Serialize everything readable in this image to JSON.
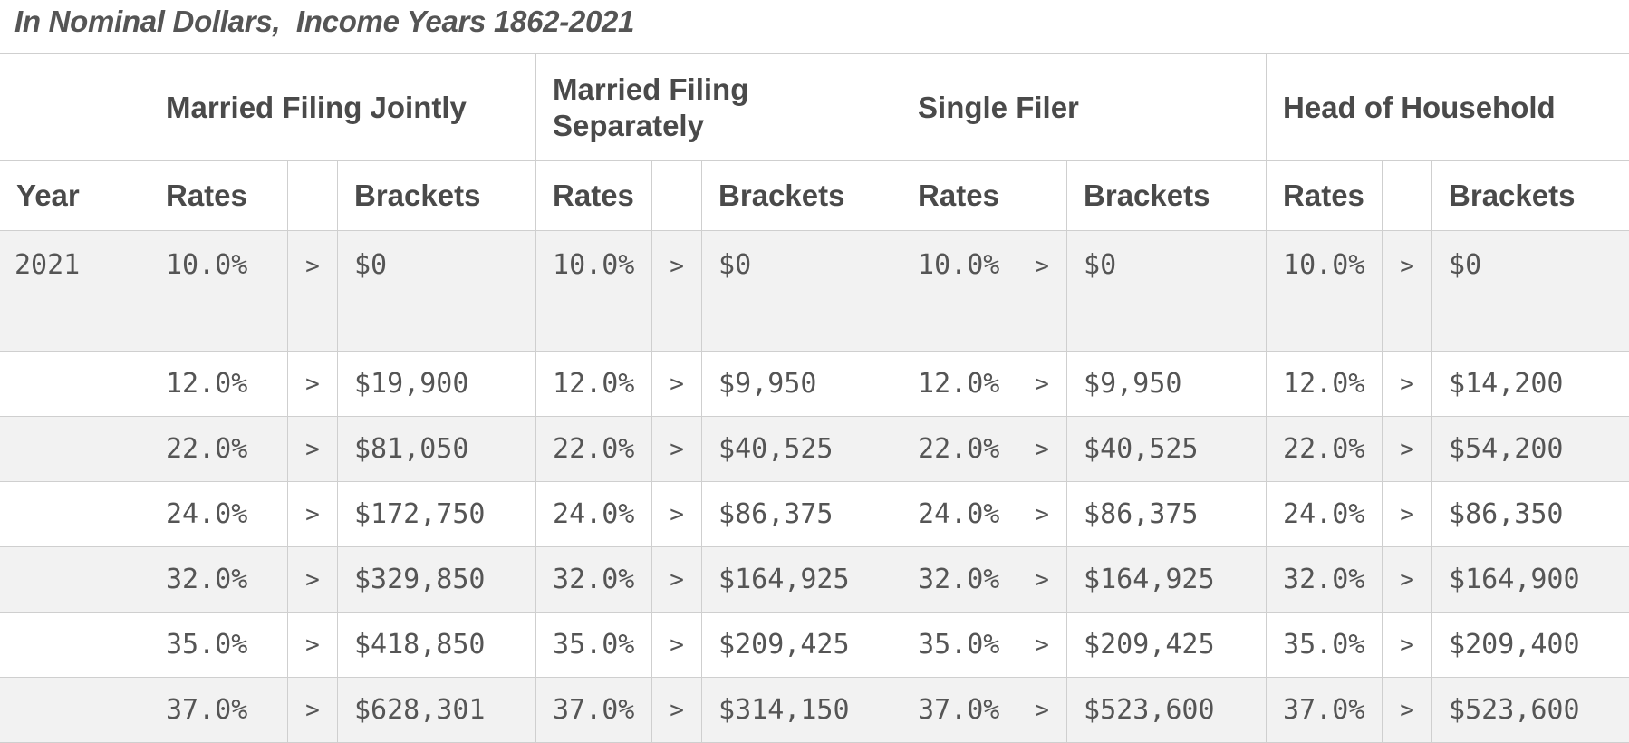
{
  "caption": "In Nominal Dollars,  Income Years 1862-2021",
  "groups": [
    "Married Filing Jointly",
    "Married Filing Separately",
    "Single Filer",
    "Head of Household"
  ],
  "subheaders": {
    "year": "Year",
    "rates": "Rates",
    "brackets": "Brackets"
  },
  "rows": [
    {
      "year": "2021",
      "cells": [
        {
          "rate": "10.0%",
          "gt": ">",
          "bracket": "$0"
        },
        {
          "rate": "10.0%",
          "gt": ">",
          "bracket": "$0"
        },
        {
          "rate": "10.0%",
          "gt": ">",
          "bracket": "$0"
        },
        {
          "rate": "10.0%",
          "gt": ">",
          "bracket": "$0"
        }
      ]
    },
    {
      "year": "",
      "cells": [
        {
          "rate": "12.0%",
          "gt": ">",
          "bracket": "$19,900"
        },
        {
          "rate": "12.0%",
          "gt": ">",
          "bracket": "$9,950"
        },
        {
          "rate": "12.0%",
          "gt": ">",
          "bracket": "$9,950"
        },
        {
          "rate": "12.0%",
          "gt": ">",
          "bracket": "$14,200"
        }
      ]
    },
    {
      "year": "",
      "cells": [
        {
          "rate": "22.0%",
          "gt": ">",
          "bracket": "$81,050"
        },
        {
          "rate": "22.0%",
          "gt": ">",
          "bracket": "$40,525"
        },
        {
          "rate": "22.0%",
          "gt": ">",
          "bracket": "$40,525"
        },
        {
          "rate": "22.0%",
          "gt": ">",
          "bracket": "$54,200"
        }
      ]
    },
    {
      "year": "",
      "cells": [
        {
          "rate": "24.0%",
          "gt": ">",
          "bracket": "$172,750"
        },
        {
          "rate": "24.0%",
          "gt": ">",
          "bracket": "$86,375"
        },
        {
          "rate": "24.0%",
          "gt": ">",
          "bracket": "$86,375"
        },
        {
          "rate": "24.0%",
          "gt": ">",
          "bracket": "$86,350"
        }
      ]
    },
    {
      "year": "",
      "cells": [
        {
          "rate": "32.0%",
          "gt": ">",
          "bracket": "$329,850"
        },
        {
          "rate": "32.0%",
          "gt": ">",
          "bracket": "$164,925"
        },
        {
          "rate": "32.0%",
          "gt": ">",
          "bracket": "$164,925"
        },
        {
          "rate": "32.0%",
          "gt": ">",
          "bracket": "$164,900"
        }
      ]
    },
    {
      "year": "",
      "cells": [
        {
          "rate": "35.0%",
          "gt": ">",
          "bracket": "$418,850"
        },
        {
          "rate": "35.0%",
          "gt": ">",
          "bracket": "$209,425"
        },
        {
          "rate": "35.0%",
          "gt": ">",
          "bracket": "$209,425"
        },
        {
          "rate": "35.0%",
          "gt": ">",
          "bracket": "$209,400"
        }
      ]
    },
    {
      "year": "",
      "cells": [
        {
          "rate": "37.0%",
          "gt": ">",
          "bracket": "$628,301"
        },
        {
          "rate": "37.0%",
          "gt": ">",
          "bracket": "$314,150"
        },
        {
          "rate": "37.0%",
          "gt": ">",
          "bracket": "$523,600"
        },
        {
          "rate": "37.0%",
          "gt": ">",
          "bracket": "$523,600"
        }
      ]
    }
  ]
}
